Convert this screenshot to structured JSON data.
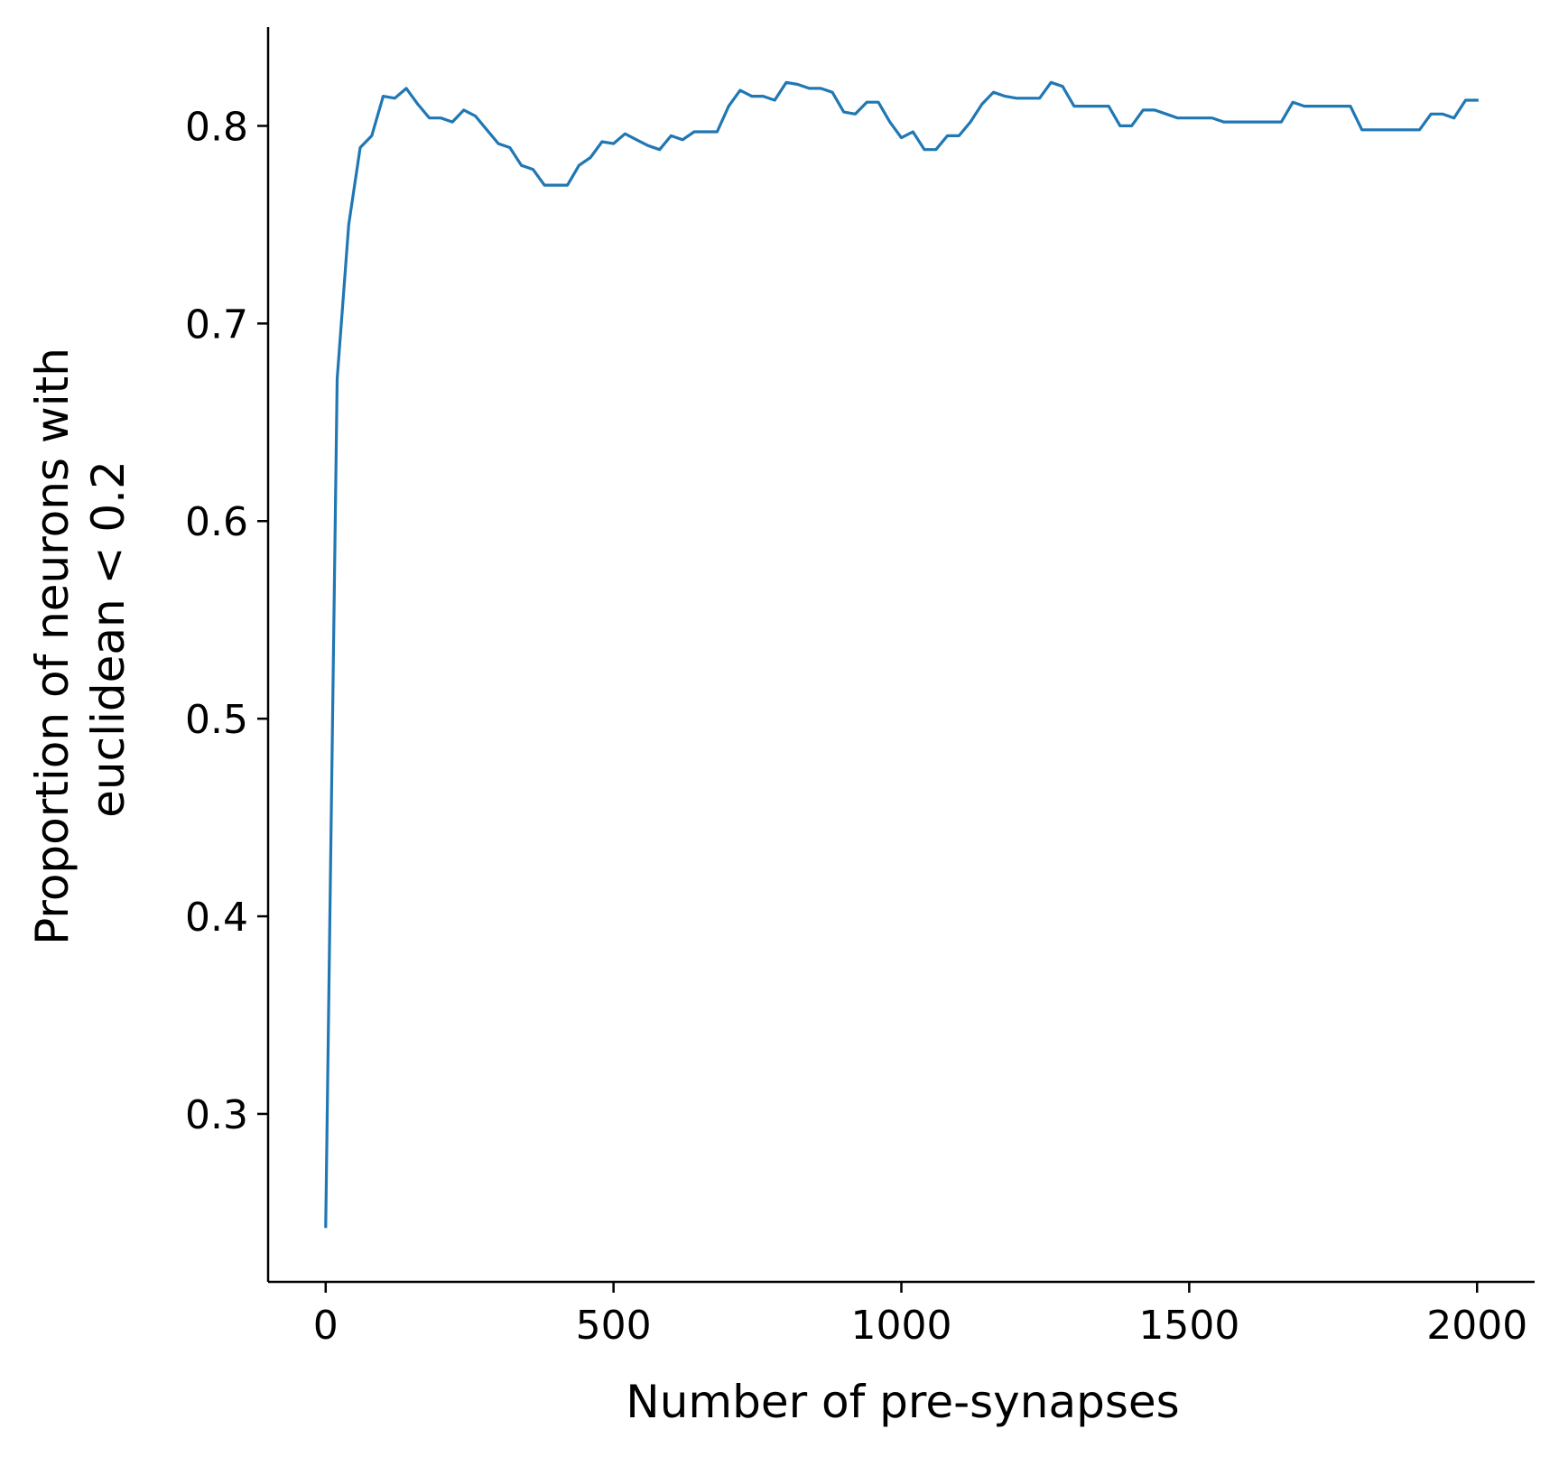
{
  "chart_data": {
    "type": "line",
    "title": "",
    "xlabel": "Number of pre-synapses",
    "ylabel_lines": [
      "Proportion of neurons with",
      "euclidean < 0.2"
    ],
    "xlim": [
      -100,
      2100
    ],
    "ylim": [
      0.215,
      0.85
    ],
    "x_ticks": [
      0,
      500,
      1000,
      1500,
      2000
    ],
    "x_tick_labels": [
      "0",
      "500",
      "1000",
      "1500",
      "2000"
    ],
    "y_ticks": [
      0.3,
      0.4,
      0.5,
      0.6,
      0.7,
      0.8
    ],
    "y_tick_labels": [
      "0.3",
      "0.4",
      "0.5",
      "0.6",
      "0.7",
      "0.8"
    ],
    "grid": false,
    "legend": "none",
    "series": [
      {
        "color": "#1f77b4",
        "x": [
          0,
          20,
          40,
          60,
          80,
          100,
          120,
          140,
          160,
          180,
          200,
          220,
          240,
          260,
          280,
          300,
          320,
          340,
          360,
          380,
          400,
          420,
          440,
          460,
          480,
          500,
          520,
          540,
          560,
          580,
          600,
          620,
          640,
          660,
          680,
          700,
          720,
          740,
          760,
          780,
          800,
          820,
          840,
          860,
          880,
          900,
          920,
          940,
          960,
          980,
          1000,
          1020,
          1040,
          1060,
          1080,
          1100,
          1120,
          1140,
          1160,
          1180,
          1200,
          1220,
          1240,
          1260,
          1280,
          1300,
          1320,
          1340,
          1360,
          1380,
          1400,
          1420,
          1440,
          1460,
          1480,
          1500,
          1520,
          1540,
          1560,
          1580,
          1600,
          1620,
          1640,
          1660,
          1680,
          1700,
          1720,
          1740,
          1760,
          1780,
          1800,
          1820,
          1840,
          1860,
          1880,
          1900,
          1920,
          1940,
          1960,
          1980,
          2000
        ],
        "y": [
          0.243,
          0.672,
          0.75,
          0.789,
          0.795,
          0.815,
          0.814,
          0.819,
          0.811,
          0.804,
          0.804,
          0.802,
          0.808,
          0.805,
          0.798,
          0.791,
          0.789,
          0.78,
          0.778,
          0.77,
          0.77,
          0.77,
          0.78,
          0.784,
          0.792,
          0.791,
          0.796,
          0.793,
          0.79,
          0.788,
          0.795,
          0.793,
          0.797,
          0.797,
          0.797,
          0.81,
          0.818,
          0.815,
          0.815,
          0.813,
          0.822,
          0.821,
          0.819,
          0.819,
          0.817,
          0.807,
          0.806,
          0.812,
          0.812,
          0.802,
          0.794,
          0.797,
          0.788,
          0.788,
          0.795,
          0.795,
          0.802,
          0.811,
          0.817,
          0.815,
          0.814,
          0.814,
          0.814,
          0.822,
          0.82,
          0.81,
          0.81,
          0.81,
          0.81,
          0.8,
          0.8,
          0.808,
          0.808,
          0.806,
          0.804,
          0.804,
          0.804,
          0.804,
          0.802,
          0.802,
          0.802,
          0.802,
          0.802,
          0.802,
          0.812,
          0.81,
          0.81,
          0.81,
          0.81,
          0.81,
          0.798,
          0.798,
          0.798,
          0.798,
          0.798,
          0.798,
          0.806,
          0.806,
          0.804,
          0.813,
          0.813
        ]
      }
    ]
  }
}
